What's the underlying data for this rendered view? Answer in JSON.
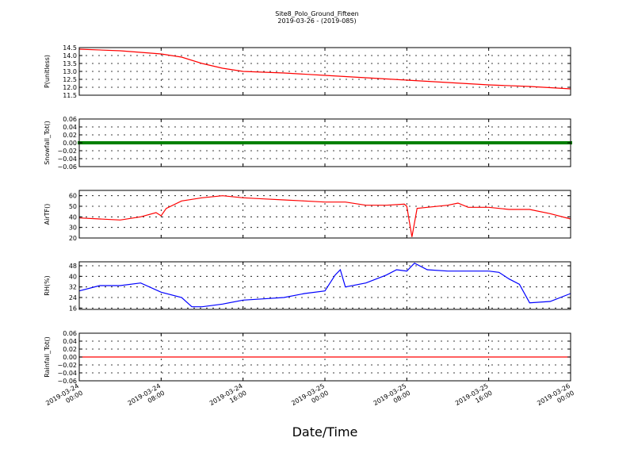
{
  "title": "Site8_Polo_Ground_Fifteen",
  "subtitle": "2019-03-26 - (2019-085)",
  "xlabel": "Date/Time",
  "x_ticks": [
    [
      "2019-03-24",
      "00:00"
    ],
    [
      "2019-03-24",
      "08:00"
    ],
    [
      "2019-03-24",
      "16:00"
    ],
    [
      "2019-03-25",
      "00:00"
    ],
    [
      "2019-03-25",
      "08:00"
    ],
    [
      "2019-03-25",
      "16:00"
    ],
    [
      "2019-03-26",
      "00:00"
    ]
  ],
  "chart_data": [
    {
      "type": "line",
      "ylabel": "P(unitless)",
      "ylim": [
        11.5,
        14.5
      ],
      "yticks": [
        "11.5",
        "12.0",
        "12.5",
        "13.0",
        "13.5",
        "14.0",
        "14.5"
      ],
      "xlim": [
        "2019-03-24 00:00",
        "2019-03-26 00:00"
      ],
      "grid": true,
      "series": [
        {
          "color": "#ff0000",
          "style": "line",
          "x": [
            "2019-03-24 00:00",
            "2019-03-24 04:00",
            "2019-03-24 08:00",
            "2019-03-24 10:00",
            "2019-03-24 12:00",
            "2019-03-24 14:00",
            "2019-03-24 16:00",
            "2019-03-24 20:00",
            "2019-03-25 00:00",
            "2019-03-25 04:00",
            "2019-03-25 08:00",
            "2019-03-25 12:00",
            "2019-03-25 16:00",
            "2019-03-25 20:00",
            "2019-03-26 00:00"
          ],
          "y": [
            14.4,
            14.3,
            14.1,
            13.9,
            13.5,
            13.2,
            13.0,
            12.9,
            12.75,
            12.6,
            12.45,
            12.3,
            12.15,
            12.05,
            11.9
          ]
        }
      ]
    },
    {
      "type": "scatter",
      "ylabel": "Snowfall_Tot()",
      "ylim": [
        -0.06,
        0.06
      ],
      "yticks": [
        "−0.06",
        "−0.04",
        "−0.02",
        "0.00",
        "0.02",
        "0.04",
        "0.06"
      ],
      "xlim": [
        "2019-03-24 00:00",
        "2019-03-26 00:00"
      ],
      "grid": true,
      "series": [
        {
          "color": "#008000",
          "style": "markers",
          "value": 0.0,
          "x_range": [
            "2019-03-24 00:00",
            "2019-03-26 00:00"
          ],
          "interval_minutes": 15
        }
      ]
    },
    {
      "type": "line",
      "ylabel": "AirTF()",
      "ylim": [
        20,
        65
      ],
      "yticks": [
        "20",
        "30",
        "40",
        "50",
        "60"
      ],
      "xlim": [
        "2019-03-24 00:00",
        "2019-03-26 00:00"
      ],
      "grid": true,
      "series": [
        {
          "color": "#ff0000",
          "style": "line",
          "x": [
            "2019-03-24 00:00",
            "2019-03-24 02:00",
            "2019-03-24 04:00",
            "2019-03-24 06:00",
            "2019-03-24 07:30",
            "2019-03-24 08:00",
            "2019-03-24 08:30",
            "2019-03-24 10:00",
            "2019-03-24 12:00",
            "2019-03-24 14:00",
            "2019-03-24 16:00",
            "2019-03-24 18:00",
            "2019-03-24 20:00",
            "2019-03-24 22:00",
            "2019-03-25 00:00",
            "2019-03-25 02:00",
            "2019-03-25 04:00",
            "2019-03-25 06:00",
            "2019-03-25 07:45",
            "2019-03-25 08:00",
            "2019-03-25 08:30",
            "2019-03-25 09:00",
            "2019-03-25 10:00",
            "2019-03-25 12:00",
            "2019-03-25 13:00",
            "2019-03-25 14:00",
            "2019-03-25 16:00",
            "2019-03-25 18:00",
            "2019-03-25 20:00",
            "2019-03-25 22:00",
            "2019-03-26 00:00"
          ],
          "y": [
            39,
            38,
            37,
            40,
            44,
            41,
            48,
            55,
            58,
            60,
            58,
            57,
            56,
            55,
            54,
            54,
            51,
            51,
            52,
            50,
            21,
            48,
            49,
            51,
            53,
            49,
            49,
            47,
            47,
            43,
            38
          ]
        }
      ]
    },
    {
      "type": "line",
      "ylabel": "RH(%)",
      "ylim": [
        15,
        51
      ],
      "yticks": [
        "16",
        "24",
        "32",
        "40",
        "48"
      ],
      "xlim": [
        "2019-03-24 00:00",
        "2019-03-26 00:00"
      ],
      "grid": true,
      "series": [
        {
          "color": "#0000ff",
          "style": "line",
          "x": [
            "2019-03-24 00:00",
            "2019-03-24 02:00",
            "2019-03-24 04:00",
            "2019-03-24 06:00",
            "2019-03-24 08:00",
            "2019-03-24 10:00",
            "2019-03-24 11:00",
            "2019-03-24 12:00",
            "2019-03-24 14:00",
            "2019-03-24 16:00",
            "2019-03-24 18:00",
            "2019-03-24 20:00",
            "2019-03-24 22:00",
            "2019-03-25 00:00",
            "2019-03-25 01:00",
            "2019-03-25 01:30",
            "2019-03-25 02:00",
            "2019-03-25 04:00",
            "2019-03-25 06:00",
            "2019-03-25 07:00",
            "2019-03-25 08:00",
            "2019-03-25 08:45",
            "2019-03-25 10:00",
            "2019-03-25 12:00",
            "2019-03-25 14:00",
            "2019-03-25 16:00",
            "2019-03-25 17:00",
            "2019-03-25 18:00",
            "2019-03-25 19:00",
            "2019-03-25 20:00",
            "2019-03-25 22:00",
            "2019-03-26 00:00"
          ],
          "y": [
            29,
            33,
            33,
            35,
            28,
            24,
            17,
            17,
            19,
            22,
            23,
            24,
            27,
            29,
            41,
            45,
            32,
            35,
            41,
            45,
            44,
            50,
            45,
            44,
            44,
            44,
            43,
            38,
            34,
            20,
            21,
            27
          ]
        }
      ]
    },
    {
      "type": "line",
      "ylabel": "Rainfall_Tot()",
      "ylim": [
        -0.06,
        0.06
      ],
      "yticks": [
        "−0.06",
        "−0.04",
        "−0.02",
        "0.00",
        "0.02",
        "0.04",
        "0.06"
      ],
      "xlim": [
        "2019-03-24 00:00",
        "2019-03-26 00:00"
      ],
      "grid": true,
      "series": [
        {
          "color": "#ff0000",
          "style": "line",
          "x": [
            "2019-03-24 00:00",
            "2019-03-26 00:00"
          ],
          "y": [
            0.0,
            0.0
          ]
        }
      ]
    }
  ]
}
